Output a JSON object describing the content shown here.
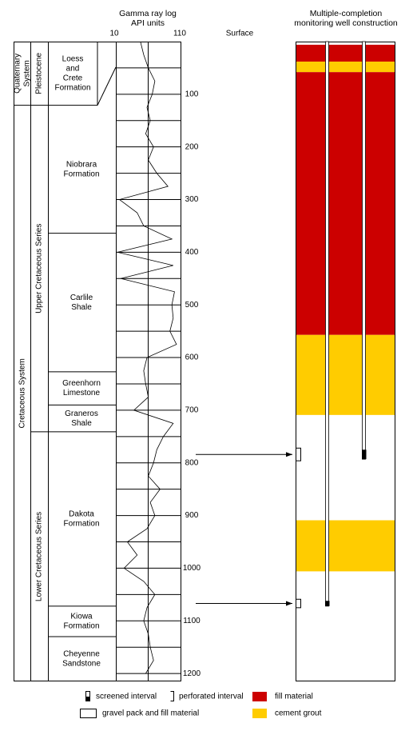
{
  "header": {
    "gamma_title": [
      "Gamma ray log",
      "API units"
    ],
    "api_min_label": "10",
    "api_max_label": "110",
    "surface_label": "Surface",
    "well_title": [
      "Multiple-completion",
      "monitoring well construction"
    ]
  },
  "depth_lim": [
    0,
    1215
  ],
  "api_lim": [
    10,
    110
  ],
  "depth_labels": [
    100,
    200,
    300,
    400,
    500,
    600,
    700,
    800,
    900,
    1000,
    1100,
    1200
  ],
  "gamma_log": {
    "depth": [
      0,
      25,
      50,
      75,
      100,
      125,
      150,
      175,
      200,
      225,
      250,
      275,
      300,
      325,
      350,
      375,
      400,
      425,
      450,
      475,
      500,
      525,
      550,
      575,
      600,
      625,
      650,
      675,
      700,
      725,
      750,
      775,
      800,
      825,
      850,
      875,
      900,
      925,
      950,
      975,
      1000,
      1025,
      1050,
      1075,
      1100,
      1125,
      1150,
      1175,
      1200
    ],
    "api": [
      50,
      55,
      62,
      72,
      68,
      60,
      65,
      58,
      70,
      62,
      75,
      92,
      18,
      45,
      55,
      98,
      15,
      100,
      20,
      102,
      98,
      100,
      95,
      105,
      60,
      55,
      58,
      62,
      40,
      100,
      85,
      75,
      70,
      62,
      80,
      65,
      72,
      60,
      30,
      45,
      25,
      55,
      72,
      60,
      55,
      62,
      65,
      70,
      58
    ]
  },
  "systems": [
    {
      "lines": [
        "Quaternary",
        "System"
      ],
      "bottom": 121
    },
    {
      "lines": [
        "Cretaceous System"
      ],
      "bottom": 1215
    }
  ],
  "series": [
    {
      "name": "Pleistocene",
      "bottom": 121
    },
    {
      "name": "Upper Cretaceous Series",
      "bottom": 741
    },
    {
      "name": "Lower Cretaceous Series",
      "bottom": 1215
    }
  ],
  "formations": [
    {
      "lines": [
        "Loess",
        "and",
        "Crete",
        "Formation"
      ],
      "bottom": 121
    },
    {
      "lines": [
        "Niobrara",
        "Formation"
      ],
      "bottom": 364
    },
    {
      "lines": [
        "Carlile",
        "Shale"
      ],
      "bottom": 627
    },
    {
      "lines": [
        "Greenhorn",
        "Limestone"
      ],
      "bottom": 690
    },
    {
      "lines": [
        "Graneros",
        "Shale"
      ],
      "bottom": 741
    },
    {
      "lines": [
        "Dakota",
        "Formation"
      ],
      "bottom": 1072
    },
    {
      "lines": [
        "Kiowa",
        "Formation"
      ],
      "bottom": 1130
    },
    {
      "lines": [
        "Cheyenne",
        "Sandstone"
      ],
      "bottom": 1215
    }
  ],
  "well": {
    "segments": [
      {
        "material": "fill",
        "color": "#cc0000",
        "top": 6,
        "bottom": 38
      },
      {
        "material": "grout",
        "color": "#ffcc00",
        "top": 38,
        "bottom": 58
      },
      {
        "material": "fill",
        "color": "#cc0000",
        "top": 58,
        "bottom": 557
      },
      {
        "material": "grout",
        "color": "#ffcc00",
        "top": 557,
        "bottom": 709
      },
      {
        "material": "grout",
        "color": "#ffcc00",
        "top": 909,
        "bottom": 1006
      }
    ],
    "pipes": [
      {
        "bottom": 1072,
        "screen_top": 1062
      },
      {
        "bottom": 793,
        "screen_top": 775
      }
    ]
  },
  "legend": {
    "screened": "screened interval",
    "perforated": "perforated interval",
    "fill": "fill material",
    "gravel": "gravel pack and fill material",
    "grout": "cement grout"
  }
}
